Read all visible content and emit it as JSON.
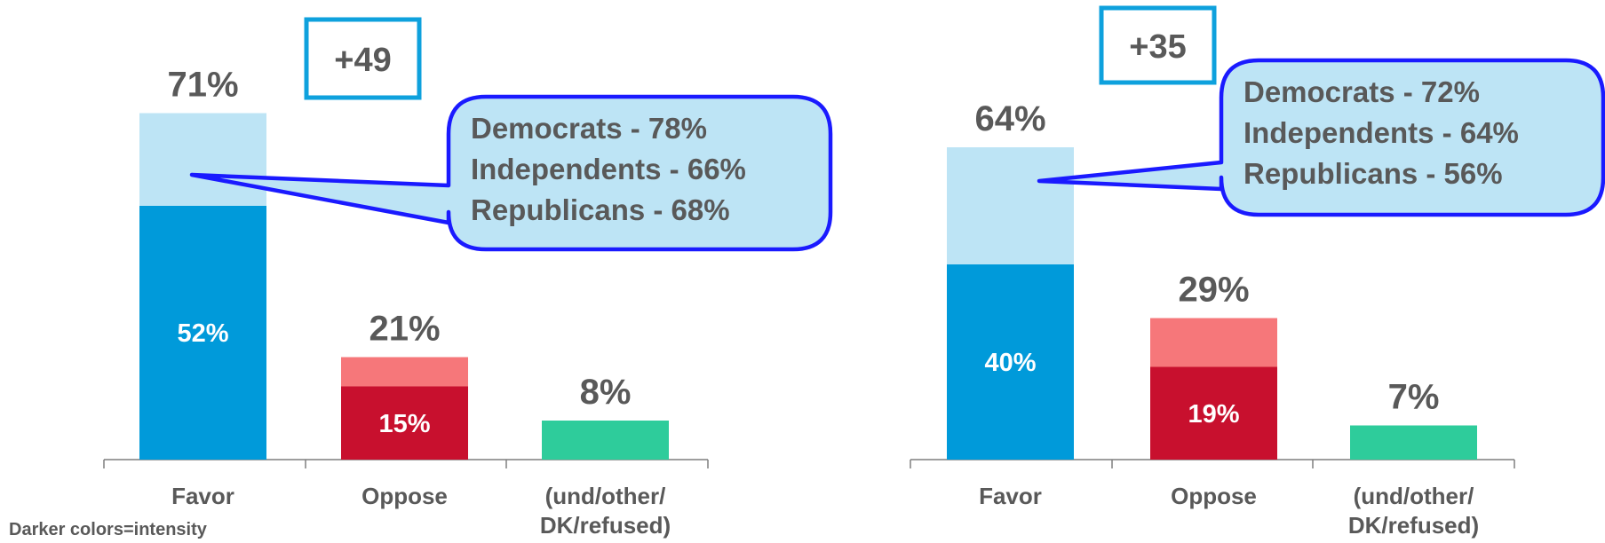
{
  "note": "Darker colors=intensity",
  "colors": {
    "favor_strong": "#009ada",
    "favor_soft": "#bde4f5",
    "oppose_strong": "#c8102e",
    "oppose_soft": "#f6777a",
    "other": "#2ecc9b",
    "label_grey": "#595959",
    "callout_fill": "#bde4f5",
    "callout_border": "#1a1aff",
    "margin_box_border": "#0ea1dd"
  },
  "chart_data": [
    {
      "type": "bar",
      "stacked": true,
      "categories": [
        "Favor",
        "Oppose",
        "(und/other/ DK/refused)"
      ],
      "totals": [
        71,
        21,
        8
      ],
      "intense": [
        52,
        15,
        null
      ],
      "total_labels": [
        "71%",
        "21%",
        "8%"
      ],
      "intense_labels": [
        "52%",
        "15%",
        ""
      ],
      "margin_label": "+49",
      "callout": [
        "Democrats - 78%",
        "Independents - 66%",
        "Republicans - 68%"
      ]
    },
    {
      "type": "bar",
      "stacked": true,
      "categories": [
        "Favor",
        "Oppose",
        "(und/other/ DK/refused)"
      ],
      "totals": [
        64,
        29,
        7
      ],
      "intense": [
        40,
        19,
        null
      ],
      "total_labels": [
        "64%",
        "29%",
        "7%"
      ],
      "intense_labels": [
        "40%",
        "19%",
        ""
      ],
      "margin_label": "+35",
      "callout": [
        "Democrats - 72%",
        "Independents - 64%",
        "Republicans - 56%"
      ]
    }
  ]
}
